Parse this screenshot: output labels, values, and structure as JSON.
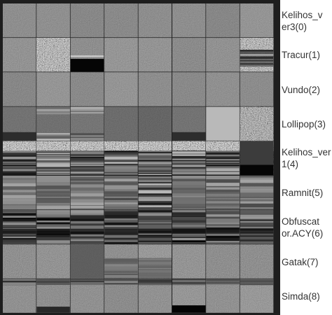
{
  "figure": {
    "rows": [
      {
        "label": "Kelihos_v\ner3(0)",
        "pattern": "flat"
      },
      {
        "label": "Tracur(1)",
        "pattern": "mixed-noisy"
      },
      {
        "label": "Vundo(2)",
        "pattern": "flat"
      },
      {
        "label": "Lollipop(3)",
        "pattern": "dark-bands"
      },
      {
        "label": "Kelihos_ver\n1(4)",
        "pattern": "heavy-stripes"
      },
      {
        "label": "Ramnit(5)",
        "pattern": "stripes"
      },
      {
        "label": "Obfuscat\nor.ACY(6)",
        "pattern": "dark-stripes"
      },
      {
        "label": "Gatak(7)",
        "pattern": "flat-noisy"
      },
      {
        "label": "Simda(8)",
        "pattern": "bottom-bars"
      }
    ],
    "columns": 8,
    "colors": {
      "background": "#ffffff",
      "tile_base": "#808080",
      "separator": "#1e1e1e",
      "label_text": "#333333"
    }
  }
}
